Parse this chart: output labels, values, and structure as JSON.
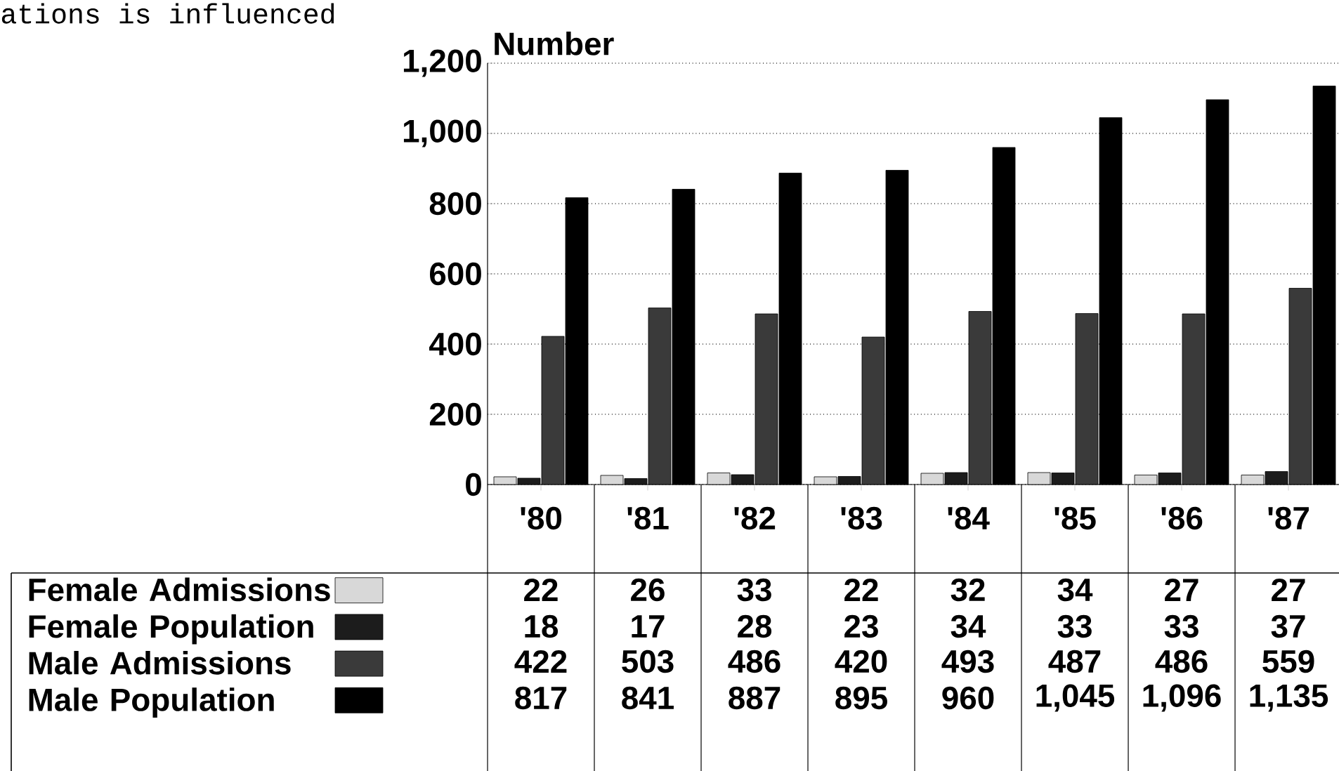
{
  "chart_data": {
    "type": "bar",
    "ylabel": "Number",
    "annotations": [
      "ations is influenced"
    ],
    "categories": [
      "'80",
      "'81",
      "'82",
      "'83",
      "'84",
      "'85",
      "'86",
      "'87"
    ],
    "series": [
      {
        "name": "Female Admissions",
        "color": "#d8d8d8",
        "values": [
          22,
          26,
          33,
          22,
          32,
          34,
          27,
          27
        ],
        "value_labels": [
          "22",
          "26",
          "33",
          "22",
          "32",
          "34",
          "27",
          "27"
        ]
      },
      {
        "name": "Female Population",
        "color": "#1c1c1c",
        "values": [
          18,
          17,
          28,
          23,
          34,
          33,
          33,
          37
        ],
        "value_labels": [
          "18",
          "17",
          "28",
          "23",
          "34",
          "33",
          "33",
          "37"
        ]
      },
      {
        "name": "Male Admissions",
        "color": "#3a3a3a",
        "values": [
          422,
          503,
          486,
          420,
          493,
          487,
          486,
          559
        ],
        "value_labels": [
          "422",
          "503",
          "486",
          "420",
          "493",
          "487",
          "486",
          "559"
        ]
      },
      {
        "name": "Male Population",
        "color": "#000000",
        "values": [
          817,
          841,
          887,
          895,
          960,
          1045,
          1096,
          1135
        ],
        "value_labels": [
          "817",
          "841",
          "887",
          "895",
          "960",
          "1,045",
          "1,096",
          "1,135"
        ]
      }
    ],
    "ylim": [
      0,
      1200
    ],
    "yticks": [
      0,
      200,
      400,
      600,
      800,
      {
        "value": 1000,
        "label": "1,000"
      },
      {
        "value": 1200,
        "label": "1,200"
      }
    ],
    "grid": "y",
    "legend": "bottom"
  }
}
